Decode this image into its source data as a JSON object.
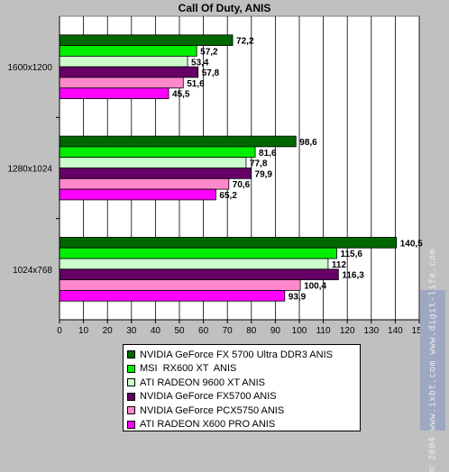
{
  "chart_data": {
    "type": "bar",
    "orientation": "horizontal",
    "title": "Call Of Duty, ANIS",
    "categories": [
      "1600x1200",
      "1280x1024",
      "1024x768"
    ],
    "series": [
      {
        "name": "NVIDIA GeForce FX 5700 Ultra DDR3 ANIS",
        "values": [
          72.2,
          98.6,
          140.5
        ],
        "labels": [
          "72,2",
          "98,6",
          "140,5"
        ],
        "color": "#006600"
      },
      {
        "name": "MSI  RX600 XT  ANIS",
        "values": [
          57.2,
          81.6,
          115.6
        ],
        "labels": [
          "57,2",
          "81,6",
          "115,6"
        ],
        "color": "#00ee00"
      },
      {
        "name": "ATI RADEON 9600 XT ANIS",
        "values": [
          53.4,
          77.8,
          112
        ],
        "labels": [
          "53,4",
          "77,8",
          "112"
        ],
        "color": "#ccffcc"
      },
      {
        "name": "NVIDIA GeForce FX5700 ANIS",
        "values": [
          57.8,
          79.9,
          116.3
        ],
        "labels": [
          "57,8",
          "79,9",
          "116,3"
        ],
        "color": "#660066"
      },
      {
        "name": "NVIDIA GeForce PCX5750 ANIS",
        "values": [
          51.6,
          70.6,
          100.4
        ],
        "labels": [
          "51,6",
          "70,6",
          "100,4"
        ],
        "color": "#ff88cc"
      },
      {
        "name": "ATI RADEON X600 PRO ANIS",
        "values": [
          45.5,
          65.2,
          93.9
        ],
        "labels": [
          "45,5",
          "65,2",
          "93,9"
        ],
        "color": "#ff00ff"
      }
    ],
    "xlim": [
      0,
      150
    ],
    "xticks": [
      "0",
      "10",
      "20",
      "30",
      "40",
      "50",
      "60",
      "70",
      "80",
      "90",
      "100",
      "110",
      "120",
      "130",
      "140",
      "150"
    ],
    "grid": true,
    "legend_position": "bottom"
  },
  "watermark": "© 2004 www.ixbt.com   www.digit-life.com"
}
